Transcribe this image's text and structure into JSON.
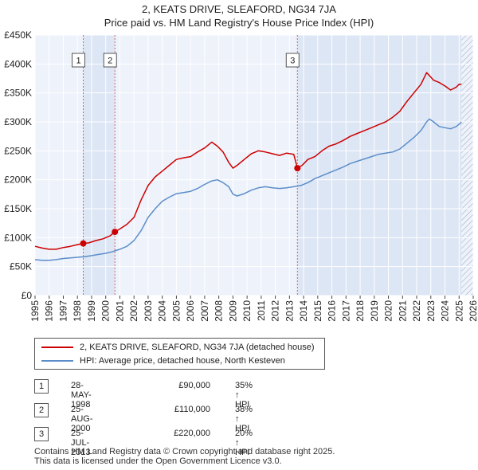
{
  "title_line1": "2, KEATS DRIVE, SLEAFORD, NG34 7JA",
  "title_line2": "Price paid vs. HM Land Registry's House Price Index (HPI)",
  "colors": {
    "property_line": "#cc0000",
    "hpi_line": "#5b8ec9",
    "shade": "#dde6f5",
    "hatch": "#9aa5b8",
    "grid": "#ffffff",
    "plot_bg": "#eef2fb",
    "vline": "#e06060"
  },
  "legend": {
    "property": "2, KEATS DRIVE, SLEAFORD, NG34 7JA (detached house)",
    "hpi": "HPI: Average price, detached house, North Kesteven"
  },
  "transactions": [
    {
      "num": "1",
      "date": "28-MAY-1998",
      "price": "£90,000",
      "hpi": "35% ↑ HPI"
    },
    {
      "num": "2",
      "date": "25-AUG-2000",
      "price": "£110,000",
      "hpi": "38% ↑ HPI"
    },
    {
      "num": "3",
      "date": "25-JUL-2013",
      "price": "£220,000",
      "hpi": "20% ↑ HPI"
    }
  ],
  "footer": {
    "line1": "Contains HM Land Registry data © Crown copyright and database right 2025.",
    "line2": "This data is licensed under the Open Government Licence v3.0."
  },
  "chart_data": {
    "type": "line",
    "title": "2, KEATS DRIVE, SLEAFORD, NG34 7JA — Price paid vs. HM Land Registry's House Price Index (HPI)",
    "xlabel": "",
    "ylabel": "",
    "xlim": [
      1995.0,
      2026.0
    ],
    "ylim": [
      0,
      450000
    ],
    "x_ticks": [
      "1995",
      "1996",
      "1997",
      "1998",
      "1999",
      "2000",
      "2001",
      "2002",
      "2003",
      "2004",
      "2005",
      "2006",
      "2007",
      "2008",
      "2009",
      "2010",
      "2011",
      "2012",
      "2013",
      "2014",
      "2015",
      "2016",
      "2017",
      "2018",
      "2019",
      "2020",
      "2021",
      "2022",
      "2023",
      "2024",
      "2025",
      "2026"
    ],
    "y_ticks": [
      {
        "value": 0,
        "label": "£0"
      },
      {
        "value": 50000,
        "label": "£50K"
      },
      {
        "value": 100000,
        "label": "£100K"
      },
      {
        "value": 150000,
        "label": "£150K"
      },
      {
        "value": 200000,
        "label": "£200K"
      },
      {
        "value": 250000,
        "label": "£250K"
      },
      {
        "value": 300000,
        "label": "£300K"
      },
      {
        "value": 350000,
        "label": "£350K"
      },
      {
        "value": 400000,
        "label": "£400K"
      },
      {
        "value": 450000,
        "label": "£450K"
      }
    ],
    "shaded_ranges": [
      [
        1998.41,
        2000.65
      ],
      [
        2013.56,
        2025.17
      ]
    ],
    "hatched_range": [
      2025.17,
      2026.0
    ],
    "series": [
      {
        "name": "2, KEATS DRIVE, SLEAFORD, NG34 7JA (detached house)",
        "color_key": "property_line",
        "x": [
          1995.0,
          1995.5,
          1996.0,
          1996.5,
          1997.0,
          1997.5,
          1998.0,
          1998.41,
          1998.8,
          1999.3,
          1999.8,
          2000.3,
          2000.65,
          2001.0,
          2001.5,
          2002.0,
          2002.5,
          2003.0,
          2003.5,
          2004.0,
          2004.5,
          2005.0,
          2005.5,
          2006.0,
          2006.5,
          2007.0,
          2007.5,
          2007.9,
          2008.3,
          2008.7,
          2009.0,
          2009.3,
          2009.8,
          2010.3,
          2010.8,
          2011.3,
          2011.8,
          2012.3,
          2012.8,
          2013.3,
          2013.56,
          2013.9,
          2014.3,
          2014.8,
          2015.3,
          2015.8,
          2016.3,
          2016.8,
          2017.3,
          2017.8,
          2018.3,
          2018.8,
          2019.3,
          2019.8,
          2020.3,
          2020.8,
          2021.3,
          2021.8,
          2022.3,
          2022.7,
          2022.9,
          2023.2,
          2023.6,
          2024.0,
          2024.4,
          2024.8,
          2025.0,
          2025.17
        ],
        "y": [
          85000,
          82000,
          80000,
          80000,
          83000,
          85000,
          88000,
          90000,
          91000,
          95000,
          98000,
          103000,
          110000,
          115000,
          123000,
          135000,
          165000,
          190000,
          205000,
          215000,
          225000,
          235000,
          238000,
          240000,
          248000,
          255000,
          265000,
          258000,
          248000,
          230000,
          220000,
          225000,
          235000,
          245000,
          250000,
          248000,
          245000,
          242000,
          246000,
          244000,
          220000,
          225000,
          235000,
          240000,
          250000,
          258000,
          262000,
          268000,
          275000,
          280000,
          285000,
          290000,
          295000,
          300000,
          308000,
          318000,
          335000,
          350000,
          365000,
          385000,
          380000,
          372000,
          368000,
          362000,
          355000,
          360000,
          365000,
          365000
        ]
      },
      {
        "name": "HPI: Average price, detached house, North Kesteven",
        "color_key": "hpi_line",
        "x": [
          1995.0,
          1995.5,
          1996.0,
          1996.5,
          1997.0,
          1997.5,
          1998.0,
          1998.5,
          1999.0,
          1999.5,
          2000.0,
          2000.5,
          2001.0,
          2001.5,
          2002.0,
          2002.5,
          2003.0,
          2003.5,
          2004.0,
          2004.5,
          2005.0,
          2005.5,
          2006.0,
          2006.5,
          2007.0,
          2007.5,
          2007.9,
          2008.3,
          2008.7,
          2009.0,
          2009.3,
          2009.8,
          2010.3,
          2010.8,
          2011.3,
          2011.8,
          2012.3,
          2012.8,
          2013.3,
          2013.8,
          2014.3,
          2014.8,
          2015.3,
          2015.8,
          2016.3,
          2016.8,
          2017.3,
          2017.8,
          2018.3,
          2018.8,
          2019.3,
          2019.8,
          2020.3,
          2020.8,
          2021.3,
          2021.8,
          2022.3,
          2022.7,
          2022.9,
          2023.2,
          2023.6,
          2024.0,
          2024.4,
          2024.8,
          2025.0,
          2025.17
        ],
        "y": [
          62000,
          61000,
          61000,
          62000,
          64000,
          65000,
          66000,
          67000,
          69000,
          71000,
          73000,
          76000,
          80000,
          85000,
          95000,
          112000,
          135000,
          150000,
          163000,
          170000,
          176000,
          178000,
          180000,
          185000,
          192000,
          198000,
          200000,
          195000,
          188000,
          175000,
          172000,
          176000,
          182000,
          186000,
          188000,
          186000,
          185000,
          186000,
          188000,
          190000,
          195000,
          202000,
          207000,
          212000,
          217000,
          222000,
          228000,
          232000,
          236000,
          240000,
          244000,
          246000,
          248000,
          253000,
          263000,
          273000,
          285000,
          300000,
          305000,
          300000,
          292000,
          290000,
          288000,
          292000,
          296000,
          300000
        ]
      }
    ],
    "markers": [
      {
        "label": "1",
        "x": 1998.41,
        "y": 90000
      },
      {
        "label": "2",
        "x": 2000.65,
        "y": 110000
      },
      {
        "label": "3",
        "x": 2013.56,
        "y": 220000
      }
    ]
  }
}
